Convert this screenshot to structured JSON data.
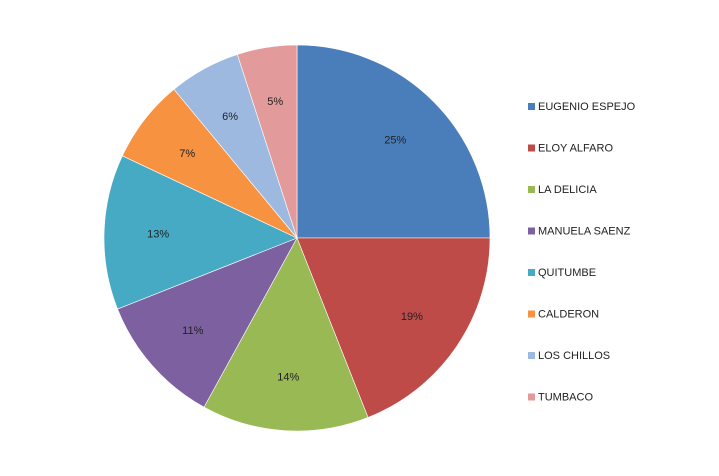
{
  "chart_data": {
    "type": "pie",
    "categories": [
      "EUGENIO ESPEJO",
      "ELOY ALFARO",
      "LA DELICIA",
      "MANUELA SAENZ",
      "QUITUMBE",
      "CALDERON",
      "LOS CHILLOS",
      "TUMBACO"
    ],
    "values": [
      25,
      19,
      14,
      11,
      13,
      7,
      6,
      5
    ],
    "labels": [
      "25%",
      "19%",
      "14%",
      "11%",
      "13%",
      "7%",
      "6%",
      "5%"
    ],
    "colors": [
      "#4a7ebb",
      "#be4b48",
      "#98b954",
      "#7d60a0",
      "#46aac5",
      "#f69240",
      "#9db9e0",
      "#e29b9a"
    ],
    "legend": "right",
    "title": ""
  }
}
